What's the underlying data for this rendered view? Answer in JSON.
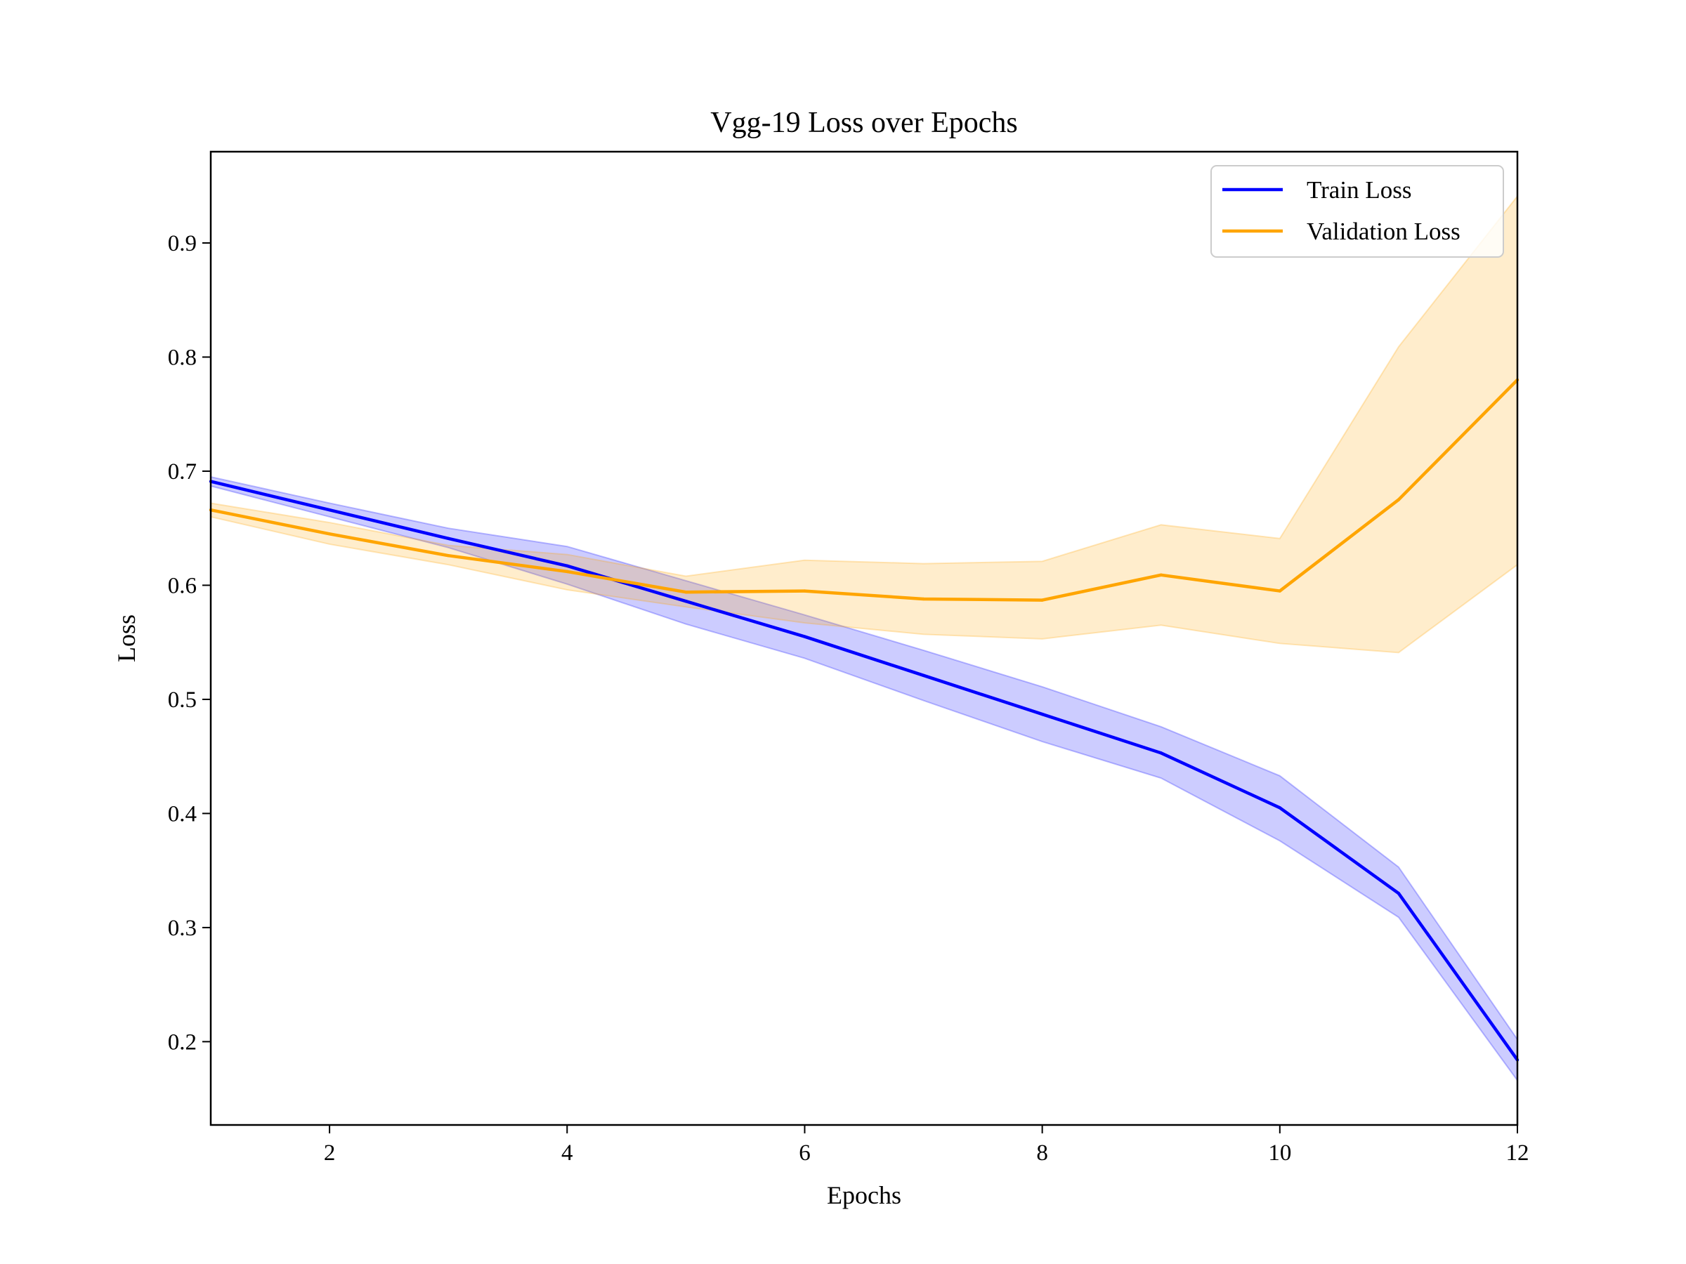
{
  "chart_data": {
    "type": "line",
    "title": "Vgg-19 Loss over Epochs",
    "xlabel": "Epochs",
    "ylabel": "Loss",
    "xlim": [
      1,
      12
    ],
    "ylim": [
      0.127,
      0.98
    ],
    "xticks": [
      2,
      4,
      6,
      8,
      10,
      12
    ],
    "yticks": [
      0.2,
      0.3,
      0.4,
      0.5,
      0.6,
      0.7,
      0.8,
      0.9
    ],
    "grid": false,
    "legend_position": "top-right",
    "x": [
      1,
      2,
      3,
      4,
      5,
      6,
      7,
      8,
      9,
      10,
      11,
      12
    ],
    "series": [
      {
        "name": "Train Loss",
        "color": "#0000ff",
        "values": [
          0.691,
          0.666,
          0.641,
          0.617,
          0.586,
          0.555,
          0.521,
          0.487,
          0.453,
          0.405,
          0.33,
          0.184
        ],
        "lower": [
          0.687,
          0.66,
          0.633,
          0.601,
          0.566,
          0.536,
          0.499,
          0.463,
          0.431,
          0.376,
          0.309,
          0.166
        ],
        "upper": [
          0.695,
          0.672,
          0.65,
          0.634,
          0.604,
          0.574,
          0.543,
          0.511,
          0.476,
          0.433,
          0.353,
          0.202
        ]
      },
      {
        "name": "Validation Loss",
        "color": "#ffa500",
        "values": [
          0.666,
          0.645,
          0.626,
          0.612,
          0.594,
          0.595,
          0.588,
          0.587,
          0.609,
          0.595,
          0.675,
          0.78
        ],
        "lower": [
          0.66,
          0.636,
          0.618,
          0.596,
          0.581,
          0.567,
          0.557,
          0.553,
          0.565,
          0.549,
          0.541,
          0.618
        ],
        "upper": [
          0.672,
          0.655,
          0.635,
          0.627,
          0.608,
          0.622,
          0.619,
          0.621,
          0.653,
          0.641,
          0.809,
          0.941
        ]
      }
    ]
  }
}
